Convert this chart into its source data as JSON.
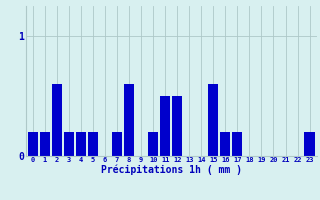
{
  "hours": [
    0,
    1,
    2,
    3,
    4,
    5,
    6,
    7,
    8,
    9,
    10,
    11,
    12,
    13,
    14,
    15,
    16,
    17,
    18,
    19,
    20,
    21,
    22,
    23
  ],
  "values": [
    0.2,
    0.2,
    0.6,
    0.2,
    0.2,
    0.2,
    0.0,
    0.2,
    0.6,
    0.0,
    0.2,
    0.5,
    0.5,
    0.0,
    0.0,
    0.6,
    0.2,
    0.2,
    0.0,
    0.0,
    0.0,
    0.0,
    0.0,
    0.2
  ],
  "bar_color": "#0000cc",
  "bg_color": "#d8f0f0",
  "grid_color": "#aec8c8",
  "text_color": "#0000bb",
  "xlabel": "Précipitations 1h ( mm )",
  "ylim": [
    0,
    1.25
  ],
  "yticks": [
    0,
    1
  ],
  "ytick_labels": [
    "0",
    "1"
  ]
}
